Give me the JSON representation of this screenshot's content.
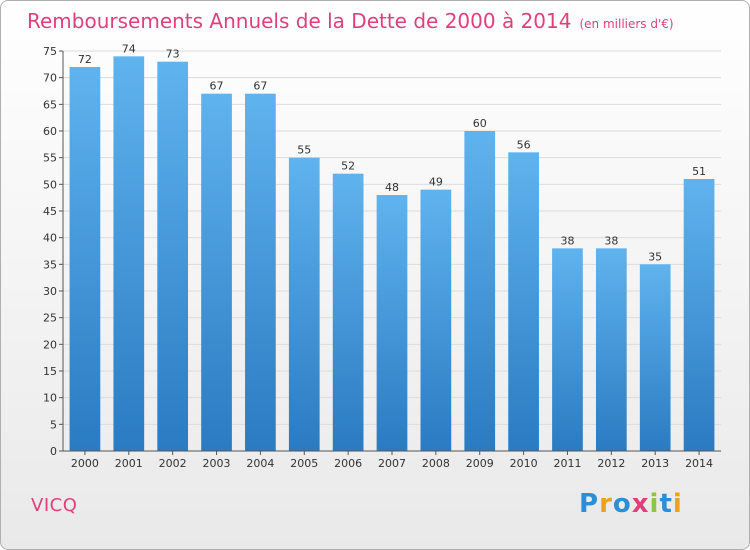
{
  "chart_data": {
    "type": "bar",
    "title": "Remboursements Annuels de la Dette de 2000 à 2014",
    "unit": "(en milliers d'€)",
    "categories": [
      "2000",
      "2001",
      "2002",
      "2003",
      "2004",
      "2005",
      "2006",
      "2007",
      "2008",
      "2009",
      "2010",
      "2011",
      "2012",
      "2013",
      "2014"
    ],
    "values": [
      72,
      74,
      73,
      67,
      67,
      55,
      52,
      48,
      49,
      60,
      56,
      38,
      38,
      35,
      51
    ],
    "ylim": [
      0,
      75
    ],
    "yticks": [
      0,
      5,
      10,
      15,
      20,
      25,
      30,
      35,
      40,
      45,
      50,
      55,
      60,
      65,
      70,
      75
    ],
    "grid": true,
    "bar_color": "#3a8fd6"
  },
  "footer": {
    "commune": "VICQ",
    "logo": [
      "P",
      "r",
      "o",
      "x",
      "i",
      "t",
      "i"
    ]
  }
}
